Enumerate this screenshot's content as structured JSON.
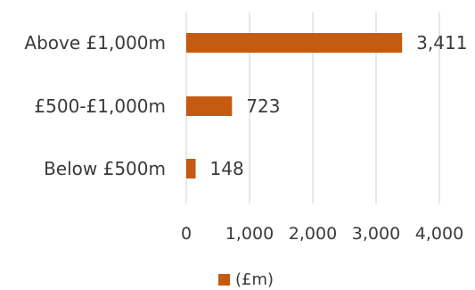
{
  "chart_data": {
    "type": "bar",
    "orientation": "horizontal",
    "categories": [
      "Above £1,000m",
      "£500-£1,000m",
      "Below £500m"
    ],
    "series": [
      {
        "name": "(£m)",
        "values": [
          3411,
          723,
          148
        ],
        "data_labels": [
          "3,411",
          "723",
          "148"
        ],
        "color": "#c55a11"
      }
    ],
    "xlim": [
      0,
      4000
    ],
    "x_ticks": [
      0,
      1000,
      2000,
      3000,
      4000
    ],
    "x_tick_labels": [
      "0",
      "1,000",
      "2,000",
      "3,000",
      "4,000"
    ],
    "title": "",
    "xlabel": "",
    "ylabel": "",
    "grid": "vertical",
    "legend_position": "bottom"
  }
}
